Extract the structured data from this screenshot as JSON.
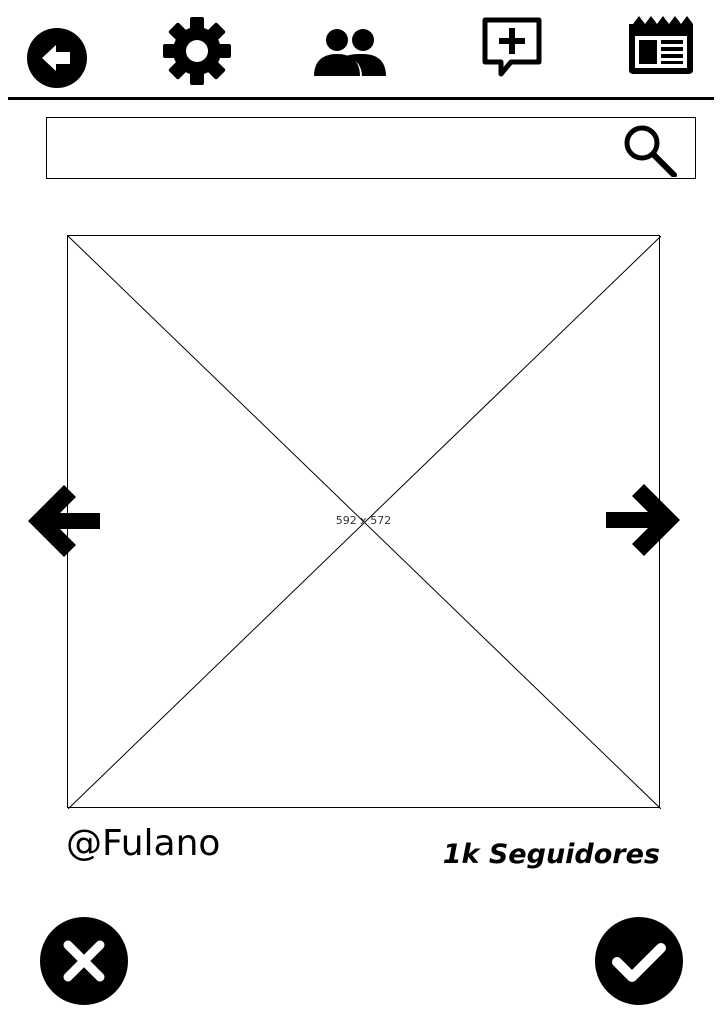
{
  "nav": {
    "items": [
      {
        "name": "back",
        "icon": "arrow-left-circle-icon"
      },
      {
        "name": "settings",
        "icon": "gear-icon"
      },
      {
        "name": "people",
        "icon": "users-icon"
      },
      {
        "name": "new-post",
        "icon": "chat-plus-icon"
      },
      {
        "name": "news",
        "icon": "newspaper-icon"
      }
    ]
  },
  "search": {
    "value": "",
    "placeholder": "",
    "icon": "search-icon"
  },
  "media": {
    "placeholder_label": "592 x 572",
    "prev_icon": "arrow-left-icon",
    "next_icon": "arrow-right-icon"
  },
  "profile": {
    "username": "@Fulano",
    "followers": "1k Seguidores"
  },
  "actions": {
    "reject_icon": "close-icon",
    "accept_icon": "check-icon"
  },
  "colors": {
    "foreground": "#000000",
    "background": "#ffffff"
  }
}
